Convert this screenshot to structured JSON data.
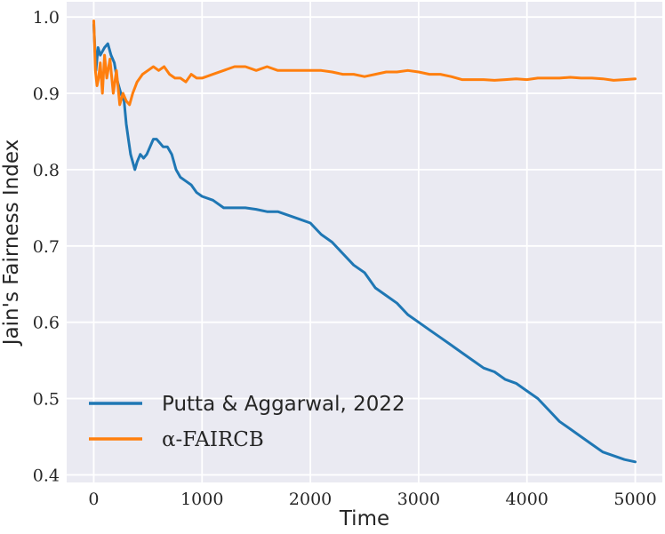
{
  "chart_data": {
    "type": "line",
    "title": "",
    "xlabel": "Time",
    "ylabel": "Jain's Fairness Index",
    "xlim": [
      -250,
      5250
    ],
    "ylim": [
      0.39,
      1.02
    ],
    "xticks": [
      0,
      1000,
      2000,
      3000,
      4000,
      5000
    ],
    "xtick_labels": [
      "0",
      "1000",
      "2000",
      "3000",
      "4000",
      "5000"
    ],
    "yticks": [
      0.4,
      0.5,
      0.6,
      0.7,
      0.8,
      0.9,
      1.0
    ],
    "ytick_labels": [
      "0.4",
      "0.5",
      "0.6",
      "0.7",
      "0.8",
      "0.9",
      "1.0"
    ],
    "grid": true,
    "background": "#eaeaf2",
    "legend_position": "lower-left",
    "series": [
      {
        "name": "Putta & Aggarwal, 2022",
        "color": "#1f77b4",
        "x": [
          0,
          20,
          40,
          60,
          80,
          100,
          130,
          160,
          190,
          220,
          250,
          280,
          300,
          320,
          340,
          360,
          380,
          400,
          430,
          460,
          490,
          520,
          550,
          580,
          610,
          640,
          680,
          720,
          760,
          800,
          850,
          900,
          950,
          1000,
          1100,
          1200,
          1300,
          1400,
          1500,
          1600,
          1700,
          1800,
          1900,
          2000,
          2100,
          2200,
          2300,
          2400,
          2500,
          2600,
          2700,
          2800,
          2900,
          3000,
          3100,
          3200,
          3300,
          3400,
          3500,
          3600,
          3700,
          3800,
          3900,
          4000,
          4100,
          4200,
          4300,
          4400,
          4500,
          4600,
          4700,
          4800,
          4900,
          5000
        ],
        "values": [
          0.99,
          0.93,
          0.96,
          0.95,
          0.955,
          0.96,
          0.965,
          0.95,
          0.94,
          0.915,
          0.9,
          0.89,
          0.86,
          0.84,
          0.82,
          0.81,
          0.8,
          0.81,
          0.82,
          0.815,
          0.82,
          0.83,
          0.84,
          0.84,
          0.835,
          0.83,
          0.83,
          0.82,
          0.8,
          0.79,
          0.785,
          0.78,
          0.77,
          0.765,
          0.76,
          0.75,
          0.75,
          0.75,
          0.748,
          0.745,
          0.745,
          0.74,
          0.735,
          0.73,
          0.715,
          0.705,
          0.69,
          0.675,
          0.665,
          0.645,
          0.635,
          0.625,
          0.61,
          0.6,
          0.59,
          0.58,
          0.57,
          0.56,
          0.55,
          0.54,
          0.535,
          0.525,
          0.52,
          0.51,
          0.5,
          0.485,
          0.47,
          0.46,
          0.45,
          0.44,
          0.43,
          0.425,
          0.42,
          0.417
        ]
      },
      {
        "name": "α-FAIRCB",
        "color": "#ff7f0e",
        "x": [
          0,
          15,
          30,
          45,
          60,
          80,
          100,
          120,
          150,
          180,
          210,
          240,
          270,
          300,
          330,
          360,
          400,
          450,
          500,
          550,
          600,
          650,
          700,
          750,
          800,
          850,
          900,
          950,
          1000,
          1100,
          1200,
          1300,
          1400,
          1500,
          1600,
          1700,
          1800,
          1900,
          2000,
          2100,
          2200,
          2300,
          2400,
          2500,
          2600,
          2700,
          2800,
          2900,
          3000,
          3100,
          3200,
          3300,
          3400,
          3500,
          3600,
          3700,
          3800,
          3900,
          4000,
          4100,
          4200,
          4300,
          4400,
          4500,
          4600,
          4700,
          4800,
          4900,
          5000
        ],
        "values": [
          0.995,
          0.93,
          0.91,
          0.92,
          0.94,
          0.9,
          0.95,
          0.92,
          0.945,
          0.9,
          0.93,
          0.885,
          0.9,
          0.89,
          0.885,
          0.9,
          0.915,
          0.925,
          0.93,
          0.935,
          0.93,
          0.935,
          0.925,
          0.92,
          0.92,
          0.915,
          0.925,
          0.92,
          0.92,
          0.925,
          0.93,
          0.935,
          0.935,
          0.93,
          0.935,
          0.93,
          0.93,
          0.93,
          0.93,
          0.93,
          0.928,
          0.925,
          0.925,
          0.922,
          0.925,
          0.928,
          0.928,
          0.93,
          0.928,
          0.925,
          0.925,
          0.922,
          0.918,
          0.918,
          0.918,
          0.917,
          0.918,
          0.919,
          0.918,
          0.92,
          0.92,
          0.92,
          0.921,
          0.92,
          0.92,
          0.919,
          0.917,
          0.918,
          0.919
        ]
      }
    ]
  }
}
